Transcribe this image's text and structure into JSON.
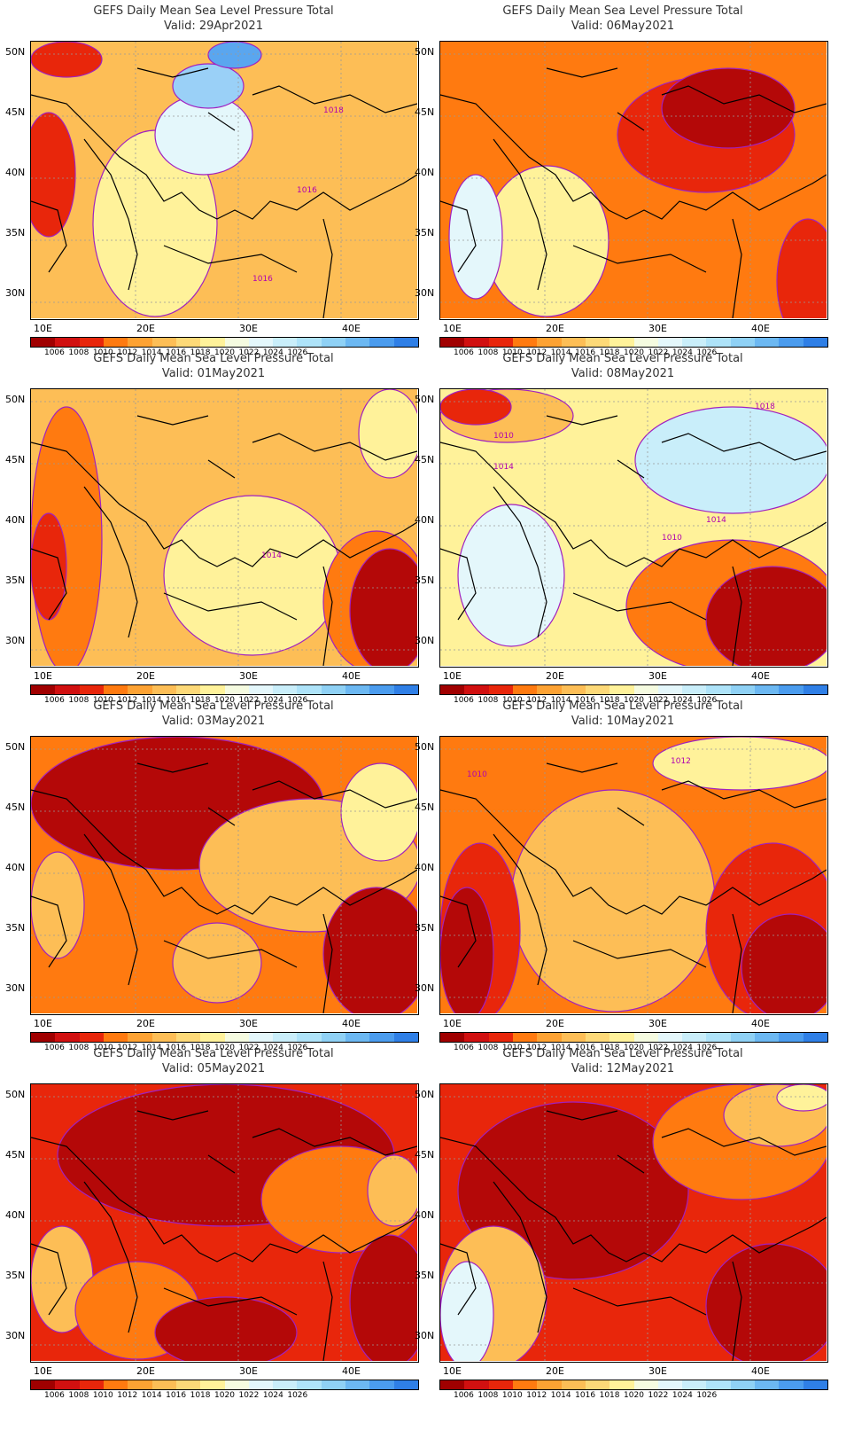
{
  "panels": [
    {
      "title": "GEFS Daily Mean Sea Level Pressure Total",
      "valid": "Valid: 29Apr2021",
      "bg": "#fdbe56",
      "blobs": [
        [
          "#fff29a",
          70,
          100,
          140,
          210
        ],
        [
          "#e4f7fb",
          140,
          60,
          110,
          90
        ],
        [
          "#9ad0f7",
          160,
          25,
          80,
          50
        ],
        [
          "#5aa6ef",
          200,
          0,
          60,
          30
        ],
        [
          "#e8260b",
          -10,
          80,
          60,
          140
        ],
        [
          "#e8260b",
          0,
          0,
          80,
          40
        ]
      ],
      "labels": [
        {
          "text": "1018",
          "xy": [
            330,
            80
          ]
        },
        {
          "text": "1016",
          "xy": [
            300,
            170
          ]
        },
        {
          "text": "1016",
          "xy": [
            250,
            270
          ]
        }
      ]
    },
    {
      "title": "GEFS Daily Mean Sea Level Pressure Total",
      "valid": "Valid: 06May2021",
      "bg": "#ff7a10",
      "blobs": [
        [
          "#fff29a",
          50,
          140,
          140,
          170
        ],
        [
          "#e4f7fb",
          10,
          150,
          60,
          140
        ],
        [
          "#e8260b",
          200,
          40,
          200,
          130
        ],
        [
          "#b40808",
          250,
          30,
          150,
          90
        ],
        [
          "#e8260b",
          380,
          200,
          70,
          140
        ]
      ],
      "labels": []
    },
    {
      "title": "GEFS Daily Mean Sea Level Pressure Total",
      "valid": "Valid: 01May2021",
      "bg": "#fdbe56",
      "blobs": [
        [
          "#fff29a",
          150,
          120,
          200,
          180
        ],
        [
          "#fff29a",
          370,
          0,
          70,
          100
        ],
        [
          "#ff7a10",
          0,
          20,
          80,
          300
        ],
        [
          "#ff7a10",
          330,
          160,
          120,
          160
        ],
        [
          "#b40808",
          360,
          180,
          90,
          140
        ],
        [
          "#e8260b",
          0,
          140,
          40,
          120
        ]
      ],
      "labels": [
        {
          "text": "1014",
          "xy": [
            260,
            190
          ]
        }
      ]
    },
    {
      "title": "GEFS Daily Mean Sea Level Pressure Total",
      "valid": "Valid: 08May2021",
      "bg": "#fff29a",
      "blobs": [
        [
          "#e4f7fb",
          20,
          130,
          120,
          160
        ],
        [
          "#c9eefa",
          220,
          20,
          220,
          120
        ],
        [
          "#fdbe56",
          0,
          0,
          150,
          60
        ],
        [
          "#e8260b",
          0,
          0,
          80,
          40
        ],
        [
          "#ff7a10",
          210,
          170,
          240,
          150
        ],
        [
          "#b40808",
          300,
          200,
          150,
          120
        ]
      ],
      "labels": [
        {
          "text": "1018",
          "xy": [
            355,
            22
          ]
        },
        {
          "text": "1014",
          "xy": [
            60,
            90
          ]
        },
        {
          "text": "1010",
          "xy": [
            60,
            55
          ]
        },
        {
          "text": "1014",
          "xy": [
            300,
            150
          ]
        },
        {
          "text": "1010",
          "xy": [
            250,
            170
          ]
        }
      ]
    },
    {
      "title": "GEFS Daily Mean Sea Level Pressure Total",
      "valid": "Valid: 03May2021",
      "bg": "#ff7a10",
      "blobs": [
        [
          "#b40808",
          0,
          0,
          330,
          150
        ],
        [
          "#fdbe56",
          190,
          70,
          250,
          150
        ],
        [
          "#fff29a",
          350,
          30,
          90,
          110
        ],
        [
          "#fdbe56",
          160,
          210,
          100,
          90
        ],
        [
          "#b40808",
          330,
          170,
          120,
          150
        ],
        [
          "#fdbe56",
          0,
          130,
          60,
          120
        ]
      ],
      "labels": []
    },
    {
      "title": "GEFS Daily Mean Sea Level Pressure Total",
      "valid": "Valid: 10May2021",
      "bg": "#ff7a10",
      "blobs": [
        [
          "#fdbe56",
          80,
          60,
          230,
          250
        ],
        [
          "#fff29a",
          240,
          0,
          200,
          60
        ],
        [
          "#e8260b",
          0,
          120,
          90,
          200
        ],
        [
          "#b40808",
          0,
          170,
          60,
          150
        ],
        [
          "#e8260b",
          300,
          120,
          150,
          200
        ],
        [
          "#b40808",
          340,
          200,
          110,
          120
        ]
      ],
      "labels": [
        {
          "text": "1012",
          "xy": [
            260,
            30
          ]
        },
        {
          "text": "1010",
          "xy": [
            30,
            45
          ]
        }
      ]
    },
    {
      "title": "GEFS Daily Mean Sea Level Pressure Total",
      "valid": "Valid: 05May2021",
      "bg": "#e8260b",
      "blobs": [
        [
          "#b40808",
          30,
          0,
          380,
          160
        ],
        [
          "#ff7a10",
          260,
          70,
          180,
          120
        ],
        [
          "#fdbe56",
          380,
          80,
          60,
          80
        ],
        [
          "#fdbe56",
          0,
          160,
          70,
          120
        ],
        [
          "#ff7a10",
          50,
          200,
          140,
          110
        ],
        [
          "#b40808",
          140,
          240,
          160,
          80
        ],
        [
          "#b40808",
          360,
          170,
          90,
          150
        ]
      ],
      "labels": []
    },
    {
      "title": "GEFS Daily Mean Sea Level Pressure Total",
      "valid": "Valid: 12May2021",
      "bg": "#e8260b",
      "blobs": [
        [
          "#b40808",
          20,
          20,
          260,
          200
        ],
        [
          "#ff7a10",
          240,
          0,
          200,
          130
        ],
        [
          "#fdbe56",
          320,
          0,
          120,
          70
        ],
        [
          "#fff29a",
          380,
          0,
          60,
          30
        ],
        [
          "#fdbe56",
          0,
          160,
          120,
          160
        ],
        [
          "#e4f7fb",
          0,
          200,
          60,
          120
        ],
        [
          "#b40808",
          300,
          180,
          150,
          140
        ]
      ],
      "labels": []
    }
  ],
  "lat_labels": [
    "50N",
    "45N",
    "40N",
    "35N",
    "30N"
  ],
  "lon_labels": [
    "10E",
    "20E",
    "30E",
    "40E"
  ],
  "colorbar": {
    "colors": [
      "#a00000",
      "#d11010",
      "#e8260b",
      "#ff7a10",
      "#fda233",
      "#fdbe56",
      "#fdd978",
      "#fff29a",
      "#f5fbe0",
      "#e4f7fb",
      "#c9eefa",
      "#aee3f9",
      "#8fd1f5",
      "#6cb8f2",
      "#4b9cee",
      "#2f7fe6"
    ],
    "labels": [
      "1006",
      "1008",
      "1010",
      "1012",
      "1014",
      "1016",
      "1018",
      "1020",
      "1022",
      "1024",
      "1026"
    ]
  }
}
